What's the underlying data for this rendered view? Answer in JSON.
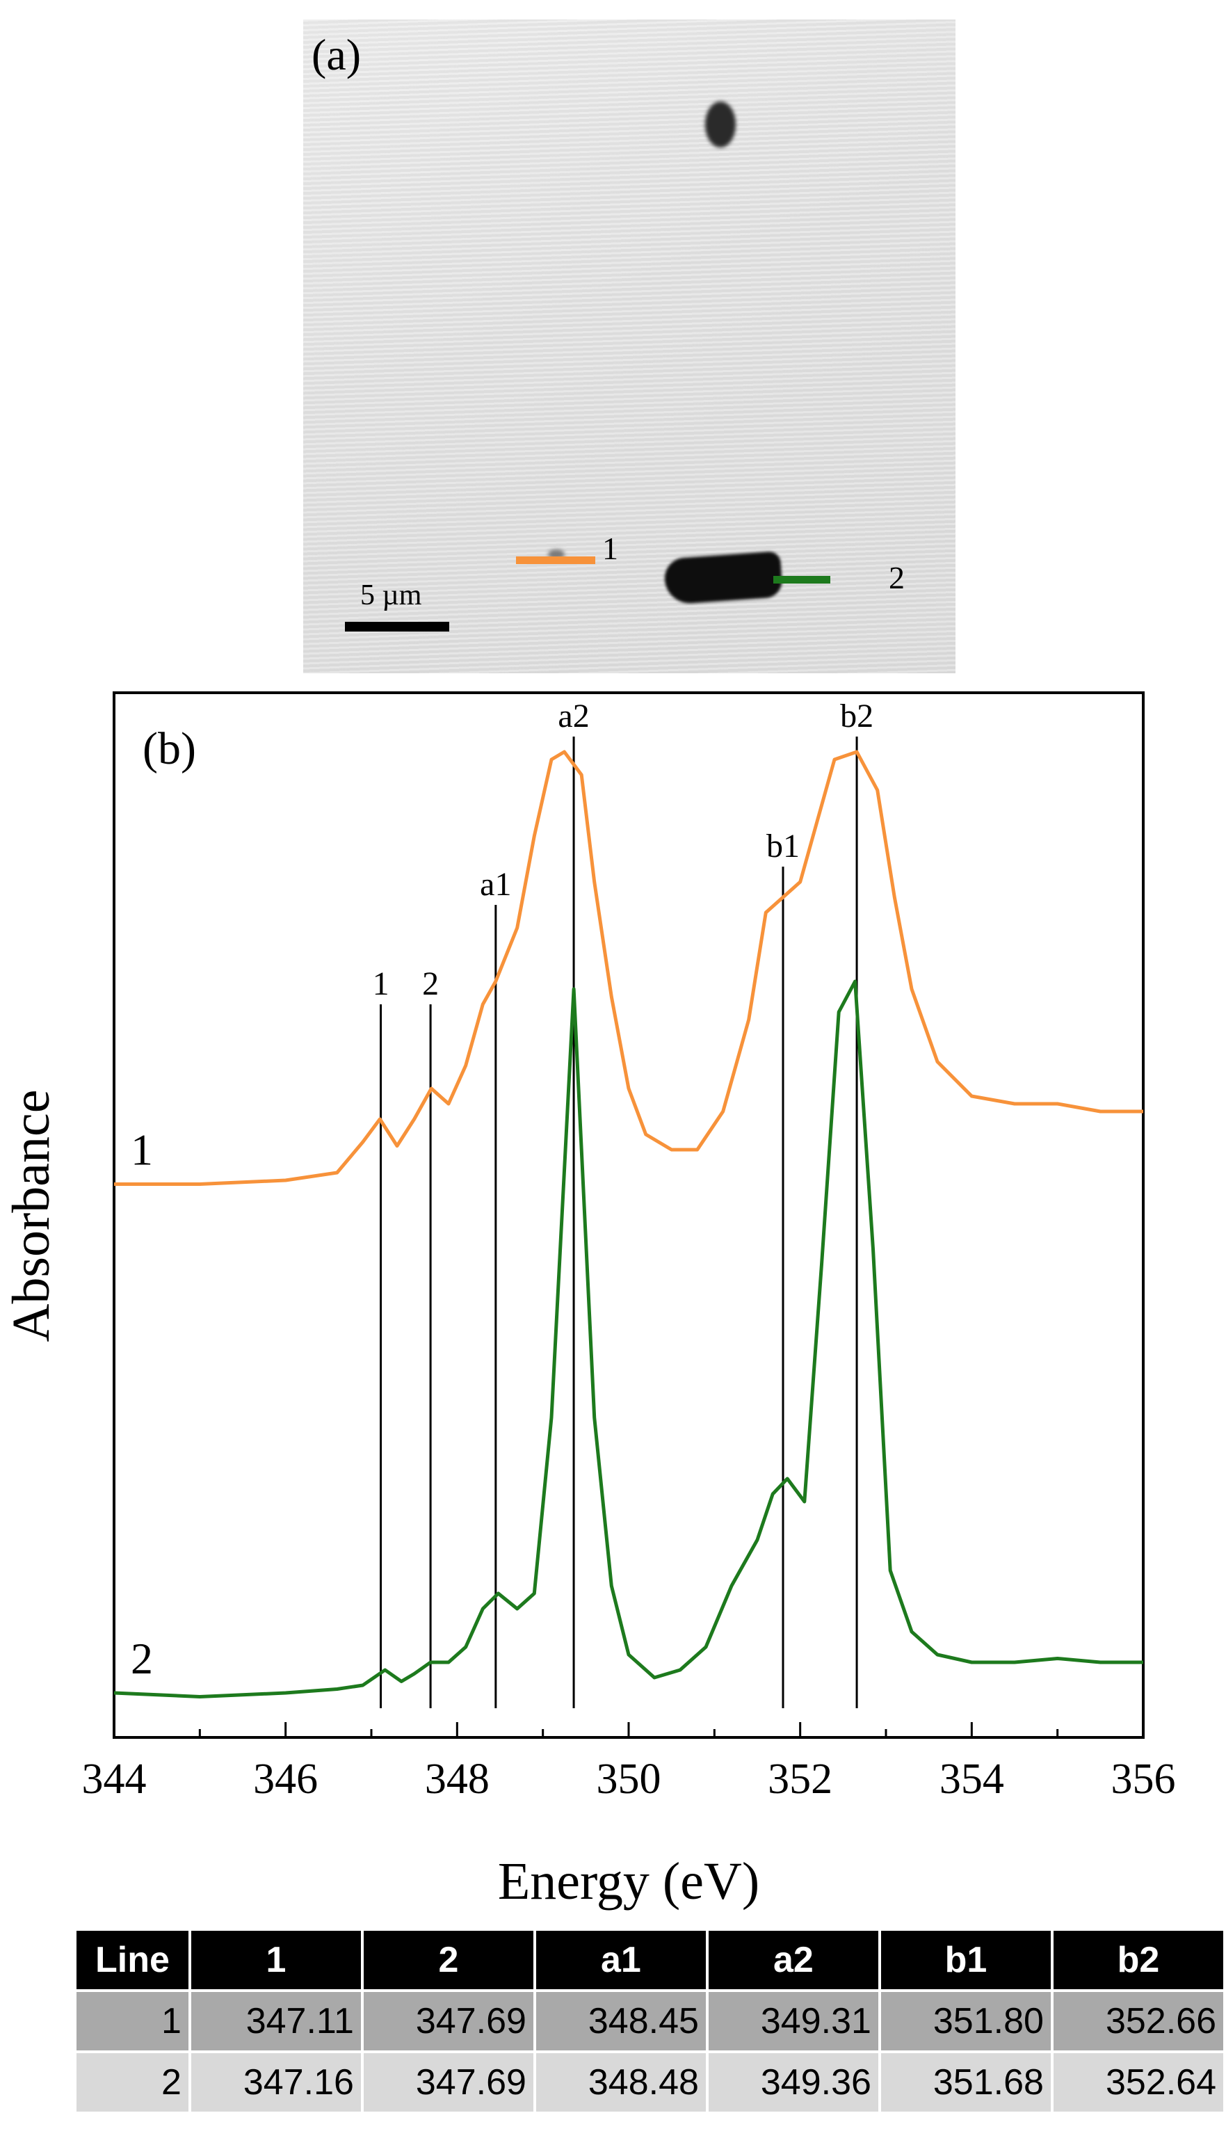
{
  "panel_a": {
    "label": "(a)",
    "scale_bar": "5 µm",
    "markers": [
      {
        "label": "1",
        "color": "#f7923a"
      },
      {
        "label": "2",
        "color": "#1d7a1d"
      }
    ]
  },
  "chart_data": {
    "type": "line",
    "panel_label": "(b)",
    "title": "",
    "xlabel": "Energy (eV)",
    "ylabel": "Absorbance",
    "xlim": [
      344,
      356
    ],
    "ylim": [
      0,
      1.3
    ],
    "xticks": [
      344,
      346,
      348,
      350,
      352,
      354,
      356
    ],
    "grid": false,
    "series": [
      {
        "name": "1",
        "color": "#f7923a",
        "x": [
          344,
          345,
          346,
          346.6,
          346.9,
          347.1,
          347.3,
          347.5,
          347.7,
          347.9,
          348.1,
          348.3,
          348.45,
          348.7,
          348.9,
          349.1,
          349.25,
          349.45,
          349.6,
          349.8,
          350.0,
          350.2,
          350.5,
          350.8,
          351.1,
          351.4,
          351.6,
          351.8,
          352.0,
          352.2,
          352.4,
          352.66,
          352.9,
          353.1,
          353.3,
          353.6,
          354.0,
          354.5,
          355.0,
          355.5,
          356
        ],
        "y": [
          0.705,
          0.705,
          0.71,
          0.72,
          0.76,
          0.79,
          0.755,
          0.79,
          0.83,
          0.81,
          0.86,
          0.94,
          0.97,
          1.04,
          1.16,
          1.26,
          1.27,
          1.24,
          1.1,
          0.95,
          0.83,
          0.77,
          0.75,
          0.75,
          0.8,
          0.92,
          1.06,
          1.08,
          1.1,
          1.18,
          1.26,
          1.27,
          1.22,
          1.08,
          0.96,
          0.865,
          0.82,
          0.81,
          0.81,
          0.8,
          0.8
        ]
      },
      {
        "name": "2",
        "color": "#1d7a1d",
        "x": [
          344,
          345,
          346,
          346.6,
          346.9,
          347.16,
          347.35,
          347.5,
          347.69,
          347.9,
          348.1,
          348.3,
          348.48,
          348.7,
          348.9,
          349.1,
          349.36,
          349.6,
          349.8,
          350.0,
          350.3,
          350.6,
          350.9,
          351.2,
          351.5,
          351.68,
          351.85,
          352.05,
          352.25,
          352.45,
          352.64,
          352.85,
          353.05,
          353.3,
          353.6,
          354.0,
          354.5,
          355.0,
          355.5,
          356
        ],
        "y": [
          0.04,
          0.035,
          0.04,
          0.045,
          0.05,
          0.07,
          0.055,
          0.065,
          0.08,
          0.08,
          0.1,
          0.15,
          0.17,
          0.15,
          0.17,
          0.4,
          0.96,
          0.4,
          0.18,
          0.09,
          0.06,
          0.07,
          0.1,
          0.18,
          0.24,
          0.3,
          0.32,
          0.29,
          0.6,
          0.93,
          0.97,
          0.62,
          0.2,
          0.12,
          0.09,
          0.08,
          0.08,
          0.085,
          0.08,
          0.08
        ]
      }
    ],
    "series_labels": [
      {
        "text": "1",
        "series": "1"
      },
      {
        "text": "2",
        "series": "2"
      }
    ],
    "vertical_markers": [
      {
        "label": "1",
        "x": 347.11,
        "y_top": 0.94
      },
      {
        "label": "2",
        "x": 347.69,
        "y_top": 0.94
      },
      {
        "label": "a1",
        "x": 348.45,
        "y_top": 1.07
      },
      {
        "label": "a2",
        "x": 349.36,
        "y_top": 1.29
      },
      {
        "label": "b1",
        "x": 351.8,
        "y_top": 1.12
      },
      {
        "label": "b2",
        "x": 352.66,
        "y_top": 1.29
      }
    ]
  },
  "table": {
    "headers": [
      "Line",
      "1",
      "2",
      "a1",
      "a2",
      "b1",
      "b2"
    ],
    "rows": [
      [
        "1",
        "347.11",
        "347.69",
        "348.45",
        "349.31",
        "351.80",
        "352.66"
      ],
      [
        "2",
        "347.16",
        "347.69",
        "348.48",
        "349.36",
        "351.68",
        "352.64"
      ]
    ]
  }
}
